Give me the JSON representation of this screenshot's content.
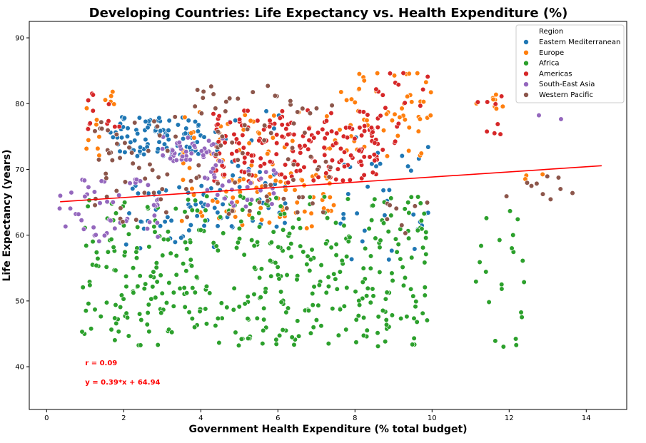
{
  "chart_data": {
    "type": "scatter",
    "title": "Developing Countries: Life Expectancy vs. Health Expenditure (%)",
    "xlabel": "Government Health Expenditure (% total budget)",
    "ylabel": "Life Expectancy (years)",
    "xlim": [
      -0.45,
      15.05
    ],
    "ylim": [
      33.5,
      92.5
    ],
    "xticks": [
      0,
      2,
      4,
      6,
      8,
      10,
      12,
      14
    ],
    "yticks": [
      40,
      50,
      60,
      70,
      80,
      90
    ],
    "grid": false,
    "legend": {
      "title": "Region",
      "placement": "top-right",
      "entries": [
        "Eastern Mediterranean",
        "Europe",
        "Africa",
        "Americas",
        "South-East Asia",
        "Western Pacific"
      ]
    },
    "series": [
      {
        "name": "Eastern Mediterranean",
        "color": "#1f77b4",
        "clusters": [
          {
            "xr": [
              1.6,
              4.0
            ],
            "yr": [
              72,
              78
            ],
            "n": 90
          },
          {
            "xr": [
              2.0,
              4.5
            ],
            "yr": [
              58,
              68
            ],
            "n": 40
          },
          {
            "xr": [
              3.8,
              6.2
            ],
            "yr": [
              61,
              79
            ],
            "n": 50
          },
          {
            "xr": [
              7.6,
              9.9
            ],
            "yr": [
              56,
              75
            ],
            "n": 35
          }
        ]
      },
      {
        "name": "Europe",
        "color": "#ff7f0e",
        "clusters": [
          {
            "xr": [
              1.0,
              1.8
            ],
            "yr": [
              71,
              82
            ],
            "n": 14
          },
          {
            "xr": [
              3.5,
              7.5
            ],
            "yr": [
              61,
              79
            ],
            "n": 110
          },
          {
            "xr": [
              7.3,
              10.0
            ],
            "yr": [
              72,
              85
            ],
            "n": 55
          },
          {
            "xr": [
              11.1,
              11.9
            ],
            "yr": [
              79,
              82
            ],
            "n": 8
          },
          {
            "xr": [
              12.3,
              12.9
            ],
            "yr": [
              68.5,
              69.5
            ],
            "n": 3
          }
        ]
      },
      {
        "name": "Africa",
        "color": "#2ca02c",
        "clusters": [
          {
            "xr": [
              0.9,
              9.9
            ],
            "yr": [
              43,
              66
            ],
            "n": 420
          },
          {
            "xr": [
              11.1,
              12.4
            ],
            "yr": [
              40,
              64
            ],
            "n": 22
          }
        ]
      },
      {
        "name": "Americas",
        "color": "#d62728",
        "clusters": [
          {
            "xr": [
              1.0,
              1.9
            ],
            "yr": [
              76,
              82
            ],
            "n": 12
          },
          {
            "xr": [
              4.3,
              8.6
            ],
            "yr": [
              68,
              79
            ],
            "n": 180
          },
          {
            "xr": [
              8.1,
              9.9
            ],
            "yr": [
              72,
              85
            ],
            "n": 25
          },
          {
            "xr": [
              11.1,
              11.9
            ],
            "yr": [
              75,
              81.5
            ],
            "n": 8
          }
        ]
      },
      {
        "name": "South-East Asia",
        "color": "#9467bd",
        "clusters": [
          {
            "xr": [
              0.3,
              2.9
            ],
            "yr": [
              59,
              69
            ],
            "n": 50
          },
          {
            "xr": [
              3.0,
              4.6
            ],
            "yr": [
              71,
              75
            ],
            "n": 40
          },
          {
            "xr": [
              4.0,
              6.0
            ],
            "yr": [
              64,
              71
            ],
            "n": 30
          },
          {
            "xr": [
              11.1,
              13.7
            ],
            "yr": [
              77.5,
              78.5
            ],
            "n": 2
          }
        ]
      },
      {
        "name": "Western Pacific",
        "color": "#8c564b",
        "clusters": [
          {
            "xr": [
              1.2,
              3.9
            ],
            "yr": [
              62,
              78
            ],
            "n": 50
          },
          {
            "xr": [
              3.8,
              7.5
            ],
            "yr": [
              63,
              83
            ],
            "n": 70
          },
          {
            "xr": [
              8.4,
              9.9
            ],
            "yr": [
              60,
              65
            ],
            "n": 8
          },
          {
            "xr": [
              11.9,
              13.8
            ],
            "yr": [
              65,
              69.5
            ],
            "n": 10
          }
        ]
      }
    ],
    "regression": {
      "slope": 0.39,
      "intercept": 64.94,
      "x_range": [
        0.35,
        14.4
      ],
      "color": "#ff0000"
    },
    "annotations": [
      {
        "text": "r = 0.09",
        "x": 1.0,
        "y": 40.2,
        "color": "#ff0000"
      },
      {
        "text": "y = 0.39*x + 64.94",
        "x": 1.0,
        "y": 37.3,
        "color": "#ff0000"
      }
    ]
  }
}
